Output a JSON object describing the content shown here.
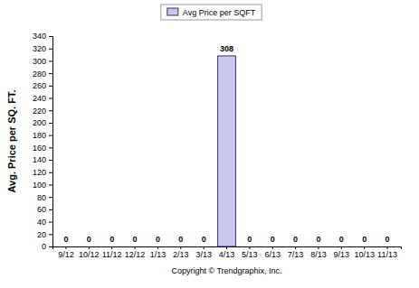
{
  "chart_data": {
    "type": "bar",
    "categories": [
      "9/12",
      "10/12",
      "11/12",
      "12/12",
      "1/13",
      "2/13",
      "3/13",
      "4/13",
      "5/13",
      "6/13",
      "7/13",
      "8/13",
      "9/13",
      "10/13",
      "11/13"
    ],
    "series": [
      {
        "name": "Avg Price per SQFT",
        "color": "#c8c8f0",
        "values": [
          0,
          0,
          0,
          0,
          0,
          0,
          0,
          308,
          0,
          0,
          0,
          0,
          0,
          0,
          0
        ]
      }
    ],
    "y_label": "Avg. Price per SQ. FT.",
    "annotations": [
      "Copyright © Trendgraphix, Inc."
    ],
    "ylim": [
      0,
      340
    ],
    "yticks": [
      0,
      20,
      40,
      60,
      80,
      100,
      120,
      140,
      160,
      180,
      200,
      220,
      240,
      260,
      280,
      300,
      320,
      340
    ],
    "grid": false,
    "legend": "top",
    "data_labels": true
  }
}
